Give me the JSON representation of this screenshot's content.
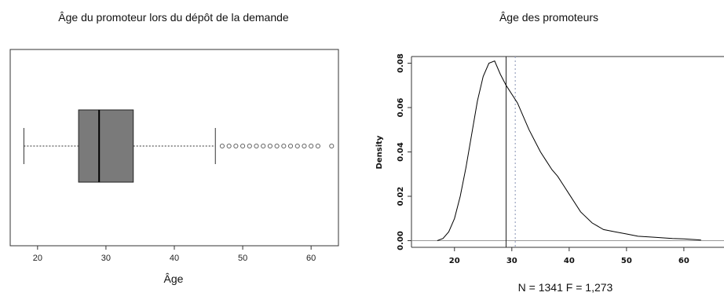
{
  "chart_data": [
    {
      "type": "boxplot",
      "title": "Âge du promoteur lors du dépôt de la demande",
      "xlabel": "Âge",
      "ylabel": "",
      "xlim": [
        16,
        64
      ],
      "xticks": [
        "20",
        "30",
        "40",
        "50",
        "60"
      ],
      "orientation": "horizontal",
      "whisker_low": 18,
      "q1": 26,
      "median": 29,
      "q3": 34,
      "whisker_high": 46,
      "outliers": [
        47,
        48,
        49,
        50,
        51,
        52,
        53,
        54,
        55,
        56,
        57,
        58,
        59,
        60,
        61,
        63
      ],
      "box_color": "#7a7a7a"
    },
    {
      "type": "line",
      "title": "Âge des promoteurs",
      "xlabel": "N = 1341  F = 1,273",
      "ylabel": "Density",
      "xlim": [
        12.5,
        67
      ],
      "ylim": [
        -0.003,
        0.083
      ],
      "xticks": [
        "20",
        "30",
        "40",
        "50",
        "60"
      ],
      "yticks": [
        "0.00",
        "0.02",
        "0.04",
        "0.06",
        "0.08"
      ],
      "series": [
        {
          "x": [
            17,
            18,
            19,
            20,
            21,
            22,
            23,
            24,
            25,
            26,
            27,
            28,
            29,
            30,
            31,
            32,
            33,
            34,
            35,
            36,
            37,
            38,
            39,
            40,
            42,
            44,
            46,
            48,
            50,
            52,
            55,
            58,
            60,
            63
          ],
          "y": [
            0.0,
            0.001,
            0.004,
            0.01,
            0.02,
            0.033,
            0.048,
            0.063,
            0.074,
            0.08,
            0.081,
            0.075,
            0.07,
            0.066,
            0.062,
            0.056,
            0.05,
            0.045,
            0.04,
            0.036,
            0.032,
            0.029,
            0.025,
            0.021,
            0.013,
            0.008,
            0.005,
            0.004,
            0.003,
            0.002,
            0.0015,
            0.001,
            0.0008,
            0.0003
          ]
        }
      ],
      "median_line_x": 29,
      "mean_line_x": 30.6,
      "baseline_y": 0,
      "line_color": "#000000",
      "mean_line_color": "#9aa4c0",
      "baseline_color": "#9a9a9a"
    }
  ]
}
